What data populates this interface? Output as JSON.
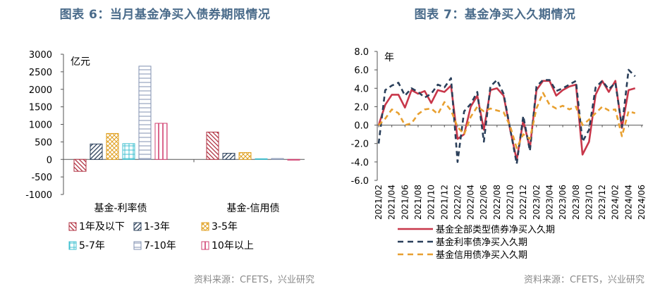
{
  "left": {
    "title": "图表 6：当月基金净买入债券期限情况",
    "source": "资料来源：CFETS，兴业研究",
    "chart_data": {
      "type": "bar",
      "unit": "亿元",
      "ylim": [
        -1000,
        3000
      ],
      "yticks": [
        "3000",
        "2500",
        "2000",
        "1500",
        "1000",
        "500",
        "0",
        "-500",
        "-1000"
      ],
      "categories": [
        "基金-利率债",
        "基金-信用债"
      ],
      "series": [
        {
          "name": "1年及以下",
          "values": [
            -340,
            780
          ],
          "color": "#b03040",
          "pattern": "diag-rev"
        },
        {
          "name": "1-3年",
          "values": [
            440,
            175
          ],
          "color": "#2a3f5a",
          "pattern": "diag"
        },
        {
          "name": "3-5年",
          "values": [
            740,
            195
          ],
          "color": "#e0a020",
          "pattern": "cross"
        },
        {
          "name": "5-7年",
          "values": [
            450,
            20
          ],
          "color": "#40c0d0",
          "pattern": "grid"
        },
        {
          "name": "7-10年",
          "values": [
            2660,
            25
          ],
          "color": "#8090b0",
          "pattern": "hlines"
        },
        {
          "name": "10年以上",
          "values": [
            1030,
            -15
          ],
          "color": "#d04070",
          "pattern": "vlines"
        }
      ]
    }
  },
  "right": {
    "title": "图表 7：基金净买入久期情况",
    "source": "资料来源：CFETS，兴业研究",
    "chart_data": {
      "type": "line",
      "unit": "年",
      "ylim": [
        -6,
        8
      ],
      "yticks": [
        "8.0",
        "6.0",
        "4.0",
        "2.0",
        "0.0",
        "-2.0",
        "-4.0",
        "-6.0"
      ],
      "xticks": [
        "2021/02",
        "2021/04",
        "2021/06",
        "2021/08",
        "2021/10",
        "2021/12",
        "2022/02",
        "2022/04",
        "2022/06",
        "2022/08",
        "2022/10",
        "2022/12",
        "2023/02",
        "2023/04",
        "2023/06",
        "2023/08",
        "2023/10",
        "2023/12",
        "2024/02",
        "2024/04",
        "2024/06"
      ],
      "x": [
        "2021/02",
        "2021/03",
        "2021/04",
        "2021/05",
        "2021/06",
        "2021/07",
        "2021/08",
        "2021/09",
        "2021/10",
        "2021/11",
        "2021/12",
        "2022/01",
        "2022/02",
        "2022/03",
        "2022/04",
        "2022/05",
        "2022/06",
        "2022/07",
        "2022/08",
        "2022/09",
        "2022/10",
        "2022/11",
        "2022/12",
        "2023/01",
        "2023/02",
        "2023/03",
        "2023/04",
        "2023/05",
        "2023/06",
        "2023/07",
        "2023/08",
        "2023/09",
        "2023/10",
        "2023/11",
        "2023/12",
        "2024/01",
        "2024/02",
        "2024/03",
        "2024/04",
        "2024/05",
        "2024/06"
      ],
      "series": [
        {
          "name": "基金全部类型债券净买入久期",
          "color": "#c8374a",
          "dash": "solid",
          "values": [
            0.0,
            2.2,
            3.3,
            3.3,
            1.9,
            3.8,
            3.4,
            3.7,
            2.4,
            3.8,
            3.6,
            4.3,
            -1.5,
            -1.0,
            2.0,
            3.2,
            -0.5,
            3.8,
            4.0,
            3.2,
            -0.5,
            -3.8,
            0.5,
            -2.5,
            3.8,
            4.8,
            4.8,
            3.2,
            3.8,
            4.2,
            4.4,
            -3.2,
            -1.8,
            3.3,
            4.8,
            3.6,
            4.8,
            -0.3,
            3.8,
            4.0,
            null
          ]
        },
        {
          "name": "基金利率债净买入久期",
          "color": "#2a3f5a",
          "dash": "dash",
          "values": [
            -2.0,
            3.8,
            4.3,
            4.6,
            3.2,
            4.0,
            3.6,
            3.0,
            3.4,
            4.4,
            4.1,
            5.1,
            -4.0,
            1.5,
            2.3,
            3.6,
            -1.8,
            4.2,
            4.9,
            3.4,
            -0.4,
            -4.2,
            1.0,
            -2.8,
            4.2,
            4.9,
            4.9,
            3.7,
            4.0,
            4.4,
            4.8,
            -1.8,
            -0.5,
            4.1,
            4.8,
            3.9,
            4.6,
            -0.2,
            6.0,
            5.3,
            null
          ]
        },
        {
          "name": "基金信用债净买入久期",
          "color": "#e8a030",
          "dash": "dash",
          "values": [
            0.0,
            0.7,
            1.7,
            1.3,
            0.0,
            0.2,
            1.2,
            1.7,
            1.8,
            1.2,
            2.5,
            1.6,
            -0.2,
            -1.0,
            0.9,
            2.0,
            1.5,
            1.8,
            1.6,
            1.4,
            -0.1,
            -2.5,
            -1.0,
            -1.5,
            1.8,
            3.5,
            2.2,
            1.8,
            2.1,
            1.7,
            2.0,
            0.0,
            0.6,
            1.3,
            2.0,
            1.6,
            1.7,
            -1.2,
            1.5,
            1.3,
            null
          ]
        }
      ]
    }
  }
}
